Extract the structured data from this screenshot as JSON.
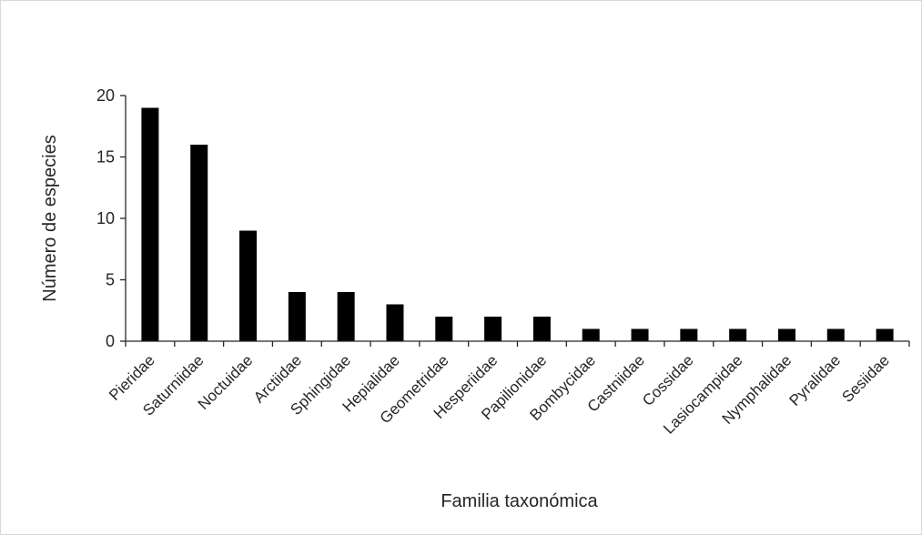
{
  "chart_data": {
    "type": "bar",
    "title": "",
    "xlabel": "Familia taxonómica",
    "ylabel": "Número de especies",
    "ylim": [
      0,
      20
    ],
    "yticks": [
      0,
      5,
      10,
      15,
      20
    ],
    "grid": false,
    "legend": "none",
    "bar_color": "#000000",
    "axis_color": "#262626",
    "categories": [
      "Pieridae",
      "Saturniidae",
      "Noctuidae",
      "Arctiidae",
      "Sphingidae",
      "Hepialidae",
      "Geometridae",
      "Hesperiidae",
      "Papilionidae",
      "Bombycidae",
      "Castniidae",
      "Cossidae",
      "Lasiocampidae",
      "Nymphalidae",
      "Pyralidae",
      "Sesiidae"
    ],
    "values": [
      19,
      16,
      9,
      4,
      4,
      3,
      2,
      2,
      2,
      1,
      1,
      1,
      1,
      1,
      1,
      1
    ]
  }
}
